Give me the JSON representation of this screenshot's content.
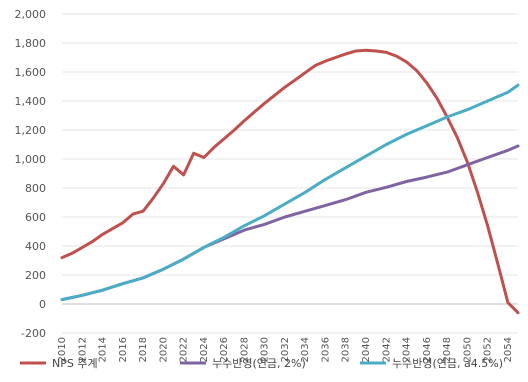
{
  "chart_data": {
    "type": "line",
    "title": "",
    "xlabel": "",
    "ylabel": "",
    "ylim": [
      -200,
      2000
    ],
    "xlim": [
      2010,
      2055
    ],
    "yticks": [
      -200,
      0,
      200,
      400,
      600,
      800,
      1000,
      1200,
      1400,
      1600,
      1800,
      2000
    ],
    "ytick_labels": [
      "-200",
      "0",
      "200",
      "400",
      "600",
      "800",
      "1,000",
      "1,200",
      "1,400",
      "1,600",
      "1,800",
      "2,000"
    ],
    "xticks": [
      2010,
      2012,
      2014,
      2016,
      2018,
      2020,
      2022,
      2024,
      2026,
      2028,
      2030,
      2032,
      2034,
      2036,
      2038,
      2040,
      2042,
      2044,
      2046,
      2048,
      2050,
      2052,
      2054
    ],
    "xtick_labels": [
      "2010",
      "2012",
      "2014",
      "2016",
      "2018",
      "2020",
      "2022",
      "2024",
      "2026",
      "2028",
      "2030",
      "2032",
      "2034",
      "2036",
      "2038",
      "2040",
      "2042",
      "2044",
      "2046",
      "2048",
      "2050",
      "2052",
      "2054"
    ],
    "grid": true,
    "legend_position": "bottom",
    "series": [
      {
        "name": "NPS 추계",
        "color": "#c0504d",
        "x": [
          2010,
          2011,
          2012,
          2013,
          2014,
          2015,
          2016,
          2017,
          2018,
          2019,
          2020,
          2021,
          2022,
          2023,
          2024,
          2025,
          2026,
          2027,
          2028,
          2029,
          2030,
          2031,
          2032,
          2033,
          2034,
          2035,
          2036,
          2037,
          2038,
          2039,
          2040,
          2041,
          2042,
          2043,
          2044,
          2045,
          2046,
          2047,
          2048,
          2049,
          2050,
          2051,
          2052,
          2053,
          2054,
          2055
        ],
        "values": [
          320,
          350,
          390,
          430,
          480,
          520,
          560,
          620,
          640,
          730,
          830,
          950,
          890,
          1040,
          1010,
          1080,
          1140,
          1200,
          1265,
          1325,
          1385,
          1440,
          1495,
          1545,
          1595,
          1645,
          1675,
          1700,
          1725,
          1745,
          1750,
          1745,
          1735,
          1710,
          1670,
          1610,
          1525,
          1420,
          1290,
          1150,
          980,
          770,
          540,
          280,
          10,
          -60
        ]
      },
      {
        "name": "누수반영(연금, 2%)",
        "color": "#8064a2",
        "x": [
          2010,
          2012,
          2014,
          2016,
          2018,
          2020,
          2022,
          2024,
          2026,
          2028,
          2030,
          2032,
          2034,
          2036,
          2038,
          2040,
          2042,
          2044,
          2046,
          2048,
          2050,
          2052,
          2054,
          2055
        ],
        "values": [
          30,
          60,
          95,
          140,
          180,
          240,
          310,
          390,
          450,
          510,
          550,
          600,
          640,
          680,
          720,
          770,
          805,
          845,
          875,
          910,
          960,
          1010,
          1060,
          1090
        ]
      },
      {
        "name": "누수반영(연금, a4.5%)",
        "color": "#4bacc6",
        "x": [
          2010,
          2012,
          2014,
          2016,
          2018,
          2020,
          2022,
          2024,
          2026,
          2028,
          2030,
          2032,
          2034,
          2036,
          2038,
          2040,
          2042,
          2044,
          2046,
          2048,
          2050,
          2052,
          2054,
          2055
        ],
        "values": [
          30,
          60,
          95,
          140,
          180,
          240,
          310,
          390,
          460,
          540,
          610,
          690,
          770,
          860,
          940,
          1020,
          1100,
          1170,
          1230,
          1290,
          1340,
          1400,
          1460,
          1510
        ]
      }
    ]
  }
}
